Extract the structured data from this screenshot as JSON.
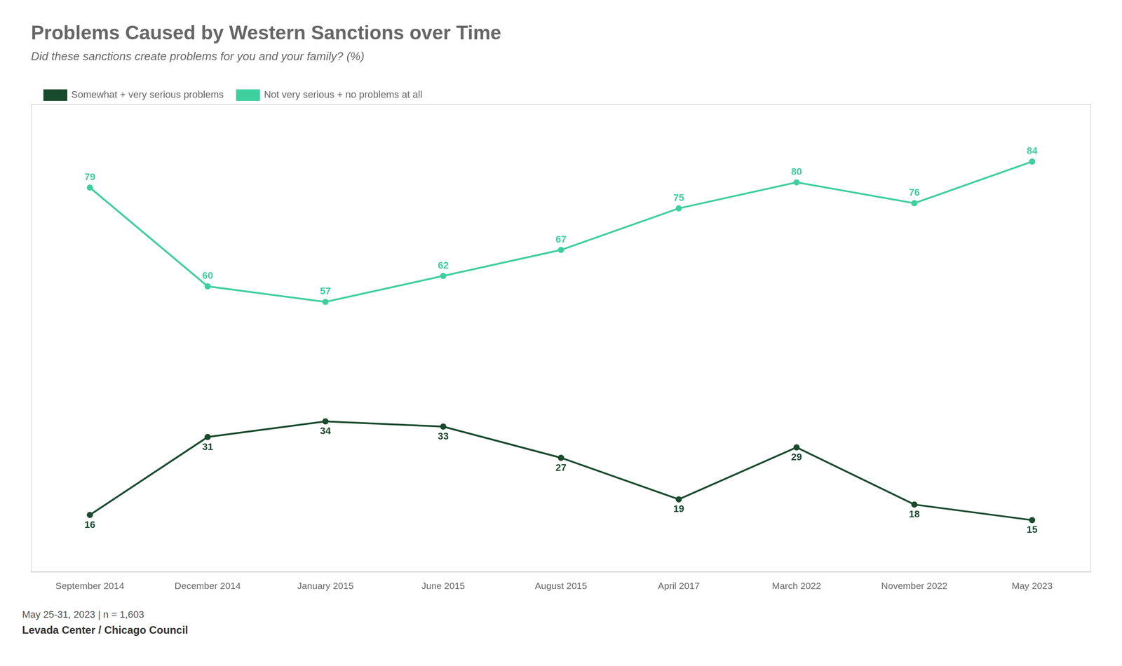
{
  "chart_data": {
    "type": "line",
    "title": "Problems Caused by Western Sanctions over Time",
    "subtitle": "Did these sanctions create problems for you and your family? (%)",
    "footnote": "May 25-31, 2023 | n = 1,603",
    "source": "Levada Center / Chicago Council",
    "categories": [
      "September 2014",
      "December 2014",
      "January 2015",
      "June 2015",
      "August 2015",
      "April 2017",
      "March 2022",
      "November 2022",
      "May 2023"
    ],
    "series": [
      {
        "name": "Somewhat + very serious problems",
        "color": "#1a4a2e",
        "values": [
          16,
          31,
          34,
          33,
          27,
          19,
          29,
          18,
          15
        ]
      },
      {
        "name": "Not very serious + no problems at all",
        "color": "#3ecf9e",
        "values": [
          79,
          60,
          57,
          62,
          67,
          75,
          80,
          76,
          84
        ]
      }
    ],
    "ylim": [
      5,
      95
    ],
    "grid": false,
    "data_labels": true,
    "tick_labels": "x",
    "legend": "top"
  }
}
